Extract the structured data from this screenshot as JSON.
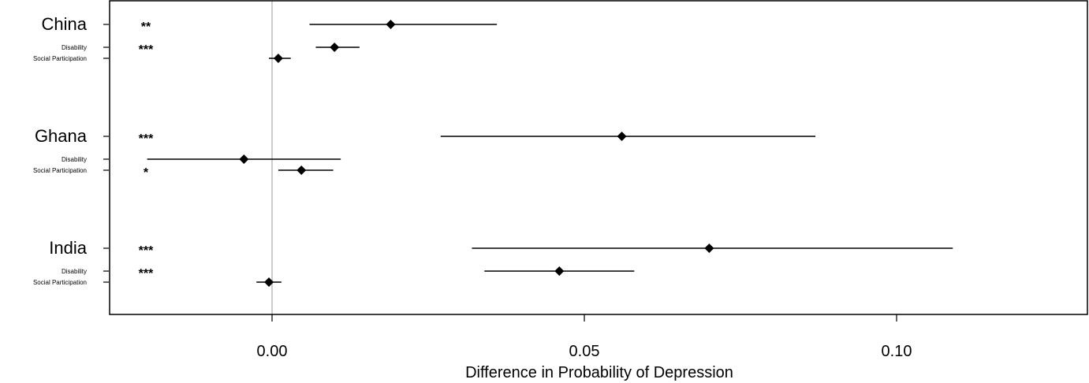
{
  "chart_data": {
    "type": "forest-plot",
    "xlabel": "Difference in Probability of Depression",
    "ylabel": "",
    "xlim": [
      -0.026,
      0.122
    ],
    "xticks": [
      0.0,
      0.05,
      0.1
    ],
    "xtick_labels": [
      "0.00",
      "0.05",
      "0.10"
    ],
    "reference_line": 0.0,
    "groups": [
      {
        "name": "China",
        "rows": [
          {
            "label": "China",
            "estimate": 0.019,
            "lower": 0.006,
            "upper": 0.036,
            "stars": "**",
            "size": "big"
          },
          {
            "label": "Disability",
            "estimate": 0.01,
            "lower": 0.007,
            "upper": 0.014,
            "stars": "***",
            "size": "small"
          },
          {
            "label": "Social Participation",
            "estimate": 0.001,
            "lower": -0.0005,
            "upper": 0.003,
            "stars": "",
            "size": "small"
          }
        ]
      },
      {
        "name": "Ghana",
        "rows": [
          {
            "label": "Ghana",
            "estimate": 0.056,
            "lower": 0.027,
            "upper": 0.087,
            "stars": "***",
            "size": "big"
          },
          {
            "label": "Disability",
            "estimate": -0.0045,
            "lower": -0.02,
            "upper": 0.011,
            "stars": "",
            "size": "small"
          },
          {
            "label": "Social Participation",
            "estimate": 0.0047,
            "lower": 0.001,
            "upper": 0.0098,
            "stars": "*",
            "size": "small"
          }
        ]
      },
      {
        "name": "India",
        "rows": [
          {
            "label": "India",
            "estimate": 0.07,
            "lower": 0.032,
            "upper": 0.109,
            "stars": "***",
            "size": "big"
          },
          {
            "label": "Disability",
            "estimate": 0.046,
            "lower": 0.034,
            "upper": 0.058,
            "stars": "***",
            "size": "small"
          },
          {
            "label": "Social Participation",
            "estimate": -0.0005,
            "lower": -0.0025,
            "upper": 0.0015,
            "stars": "",
            "size": "small"
          }
        ]
      }
    ],
    "colors": {
      "marks": "#000000",
      "reference_line": "#bbbbbb",
      "frame": "#000000"
    }
  }
}
